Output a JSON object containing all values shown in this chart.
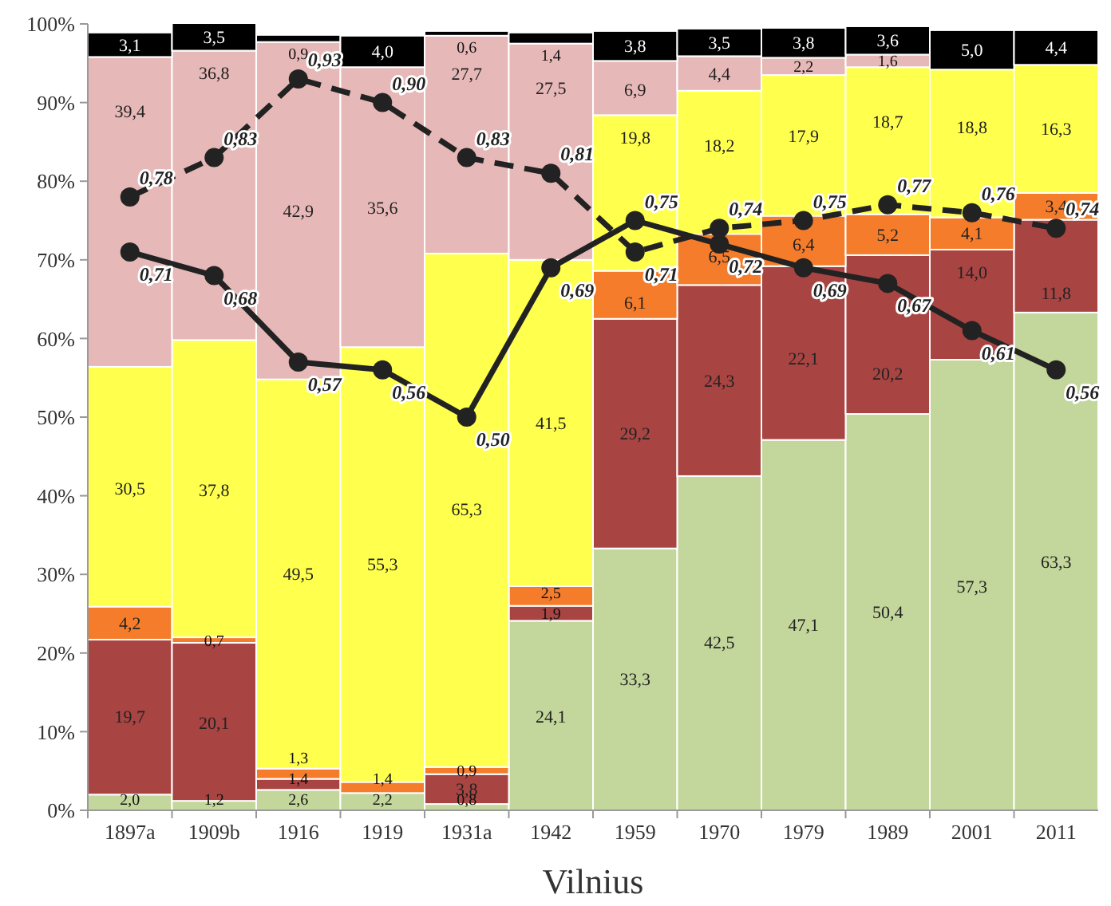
{
  "chart_data": {
    "type": "bar",
    "stacked": true,
    "xlabel": "Vilnius",
    "categories": [
      "1897a",
      "1909b",
      "1916",
      "1919",
      "1931a",
      "1942",
      "1959",
      "1970",
      "1979",
      "1989",
      "2001",
      "2011"
    ],
    "ylim": [
      0,
      100
    ],
    "yticks": [
      {
        "value": 0,
        "label": "0%"
      },
      {
        "value": 10,
        "label": "10%"
      },
      {
        "value": 20,
        "label": "20%"
      },
      {
        "value": 30,
        "label": "30%"
      },
      {
        "value": 40,
        "label": "40%"
      },
      {
        "value": 50,
        "label": "50%"
      },
      {
        "value": 60,
        "label": "60%"
      },
      {
        "value": 70,
        "label": "70%"
      },
      {
        "value": 80,
        "label": "80%"
      },
      {
        "value": 90,
        "label": "90%"
      },
      {
        "value": 100,
        "label": "100%"
      }
    ],
    "y2lim": [
      0,
      1
    ],
    "grid": false,
    "legend": false,
    "series": [
      {
        "color": "#c3d69b",
        "values": [
          2.0,
          1.2,
          2.6,
          2.2,
          0.8,
          24.1,
          33.3,
          42.5,
          47.1,
          50.4,
          57.3,
          63.3
        ],
        "value_labels": [
          "2,0",
          "1,2",
          "2,6",
          "2,2",
          "0,8",
          "24,1",
          "33,3",
          "42,5",
          "47,1",
          "50,4",
          "57,3",
          "63,3"
        ]
      },
      {
        "color": "#a84442",
        "values": [
          19.7,
          20.1,
          1.4,
          null,
          3.8,
          1.9,
          29.2,
          24.3,
          22.1,
          20.2,
          14.0,
          11.8
        ],
        "value_labels": [
          "19,7",
          "20,1",
          "1,4",
          null,
          "3,8",
          "1,9",
          "29,2",
          "24,3",
          "22,1",
          "20,2",
          "14,0",
          "11,8"
        ]
      },
      {
        "color": "#f47c2b",
        "values": [
          4.2,
          0.7,
          1.3,
          1.4,
          0.9,
          2.5,
          6.1,
          6.5,
          6.4,
          5.2,
          4.1,
          3.4
        ],
        "value_labels": [
          "4,2",
          "0,7",
          "1,3",
          "1,4",
          "0,9",
          "2,5",
          "6,1",
          "6,5",
          "6,4",
          "5,2",
          "4,1",
          "3,4"
        ]
      },
      {
        "color": "#ffff4d",
        "values": [
          30.5,
          37.8,
          49.5,
          55.3,
          65.3,
          41.5,
          19.8,
          18.2,
          17.9,
          18.7,
          18.8,
          16.3
        ],
        "value_labels": [
          "30,5",
          "37,8",
          "49,5",
          "55,3",
          "65,3",
          "41,5",
          "19,8",
          "18,2",
          "17,9",
          "18,7",
          "18,8",
          "16,3"
        ]
      },
      {
        "color": "#e6b8b7",
        "values": [
          39.4,
          36.8,
          42.9,
          35.6,
          27.7,
          27.5,
          6.9,
          4.4,
          2.2,
          1.6,
          null,
          null
        ],
        "value_labels": [
          "39,4",
          "36,8",
          "42,9",
          "35,6",
          "27,7",
          "27,5",
          "6,9",
          "4,4",
          "2,2",
          "1,6",
          null,
          null
        ]
      },
      {
        "color": "#000000",
        "values": [
          3.1,
          3.5,
          0.9,
          4.0,
          0.6,
          1.4,
          3.8,
          3.5,
          3.8,
          3.6,
          5.0,
          4.4
        ],
        "value_labels": [
          "3,1",
          "3,5",
          "0,9",
          "4,0",
          "0,6",
          "1,4",
          "3,8",
          "3,5",
          "3,8",
          "3,6",
          "5,0",
          "4,4"
        ]
      },
      {
        "type": "line",
        "axis": "y2",
        "color": "#222222",
        "marker": "circle",
        "line_style": "solid",
        "values": [
          0.71,
          0.68,
          0.57,
          0.56,
          0.5,
          0.69,
          0.75,
          0.72,
          0.69,
          0.67,
          0.61,
          0.56
        ],
        "value_labels": [
          "0,71",
          "0,68",
          "0,57",
          "0,56",
          "0,50",
          "0,69",
          "0,75",
          "0,72",
          "0,69",
          "0,67",
          "0,61",
          "0,56"
        ]
      },
      {
        "type": "line",
        "axis": "y2",
        "color": "#222222",
        "marker": "circle",
        "line_style": "dashed",
        "values": [
          0.78,
          0.83,
          0.93,
          0.9,
          0.83,
          0.81,
          0.71,
          0.74,
          0.75,
          0.77,
          0.76,
          0.74
        ],
        "value_labels": [
          "0,78",
          "0,83",
          "0,93",
          "0,90",
          "0,83",
          "0,81",
          "0,71",
          "0,74",
          "0,75",
          "0,77",
          "0,76",
          "0,74"
        ]
      }
    ]
  }
}
